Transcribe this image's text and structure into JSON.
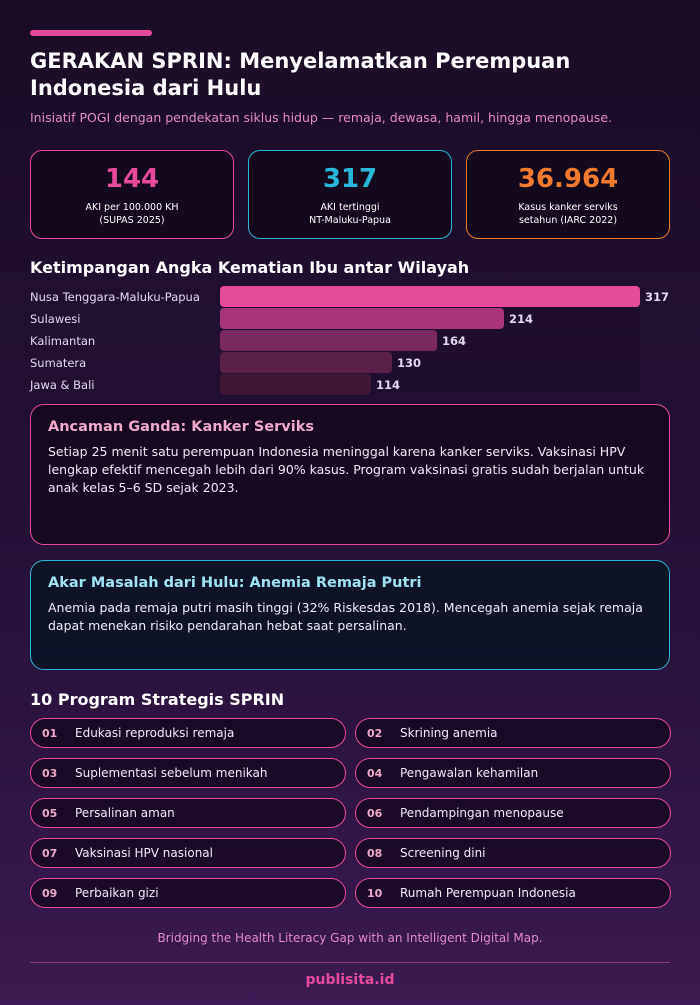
{
  "header": {
    "title": "GERAKAN SPRIN: Menyelamatkan Perempuan Indonesia dari Hulu",
    "subtitle": "Inisiatif POGI dengan pendekatan siklus hidup — remaja, dewasa, hamil, hingga menopause."
  },
  "stats": [
    {
      "value": "144",
      "label_line1": "AKI per 100.000 KH",
      "label_line2": "(SUPAS 2025)"
    },
    {
      "value": "317",
      "label_line1": "AKI tertinggi",
      "label_line2": "NT-Maluku-Papua"
    },
    {
      "value": "36.964",
      "label_line1": "Kasus kanker serviks",
      "label_line2": "setahun (IARC 2022)"
    }
  ],
  "chart_section_title": "Ketimpangan Angka Kematian Ibu antar Wilayah",
  "chart_data": {
    "type": "bar",
    "orientation": "horizontal",
    "title": "Ketimpangan Angka Kematian Ibu antar Wilayah",
    "categories": [
      "Nusa Tenggara-Maluku-Papua",
      "Sulawesi",
      "Kalimantan",
      "Sumatera",
      "Jawa & Bali"
    ],
    "values": [
      317,
      214,
      164,
      130,
      114
    ],
    "xlim": [
      0,
      317
    ],
    "grid": false,
    "colors": [
      "#e84a9a",
      "#a8357a",
      "#7a2a5e",
      "#5a2148",
      "#3f1834"
    ]
  },
  "cards": {
    "serviks": {
      "title": "Ancaman Ganda: Kanker Serviks",
      "text": "Setiap 25 menit satu perempuan Indonesia meninggal karena kanker serviks. Vaksinasi HPV lengkap efektif mencegah lebih dari 90% kasus. Program vaksinasi gratis sudah berjalan untuk anak kelas 5–6 SD sejak 2023."
    },
    "anemia": {
      "title": "Akar Masalah dari Hulu: Anemia Remaja Putri",
      "text": "Anemia pada remaja putri masih tinggi (32% Riskesdas 2018). Mencegah anemia sejak remaja dapat menekan risiko pendarahan hebat saat persalinan."
    }
  },
  "programs_title": "10 Program Strategis SPRIN",
  "programs": [
    {
      "num": "01",
      "label": "Edukasi reproduksi remaja"
    },
    {
      "num": "02",
      "label": "Skrining anemia"
    },
    {
      "num": "03",
      "label": "Suplementasi sebelum menikah"
    },
    {
      "num": "04",
      "label": "Pengawalan kehamilan"
    },
    {
      "num": "05",
      "label": "Persalinan aman"
    },
    {
      "num": "06",
      "label": "Pendampingan menopause"
    },
    {
      "num": "07",
      "label": "Vaksinasi HPV nasional"
    },
    {
      "num": "08",
      "label": "Screening dini"
    },
    {
      "num": "09",
      "label": "Perbaikan gizi"
    },
    {
      "num": "10",
      "label": "Rumah Perempuan Indonesia"
    }
  ],
  "footer": {
    "tagline": "Bridging the Health Literacy Gap with an Intelligent Digital Map.",
    "brand": "publisita.id"
  },
  "colors": {
    "pink": "#e84a9a",
    "cyan": "#29b6d8",
    "orange": "#f07a2e"
  }
}
